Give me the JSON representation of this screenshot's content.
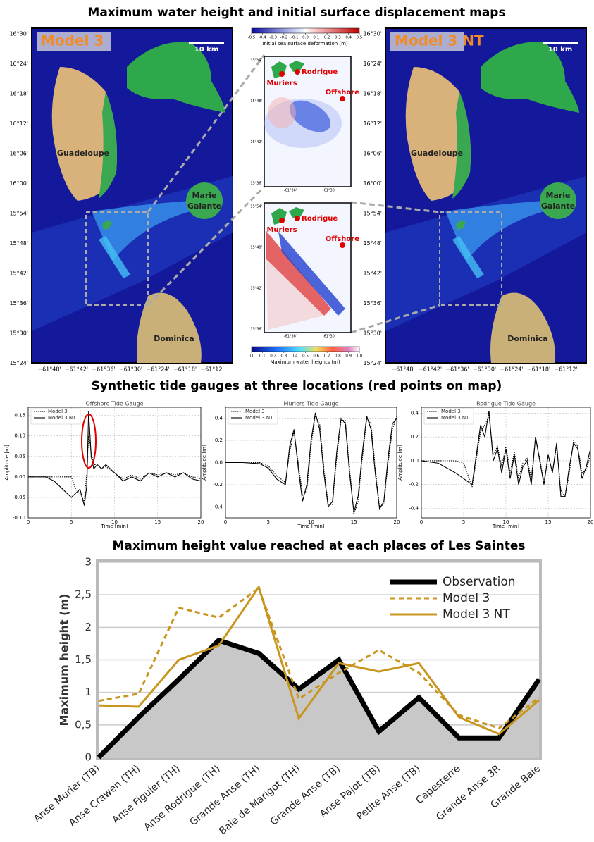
{
  "maps": {
    "title": "Maximum water height and initial surface displacement maps",
    "left_model": "Model 3",
    "right_model": "Model 3 NT",
    "scale": "10 km",
    "places": {
      "guadeloupe": "Guadeloupe",
      "marie_galante": "Marie Galante",
      "dominica": "Dominica"
    },
    "lat_ticks": [
      "16°30'",
      "16°24'",
      "16°18'",
      "16°12'",
      "16°06'",
      "16°00'",
      "15°54'",
      "15°48'",
      "15°42'",
      "15°36'",
      "15°30'",
      "15°24'"
    ],
    "lon_ticks": [
      "−61°48'",
      "−61°42'",
      "−61°36'",
      "−61°30'",
      "−61°24'",
      "−61°18'",
      "−61°12'"
    ],
    "deformation_colorbar": {
      "label": "Initial sea surface deformation (m)",
      "ticks": [
        -0.5,
        -0.4,
        -0.3,
        -0.2,
        -0.1,
        {
          "value": 0,
          "label": "0.0"
        },
        0.1,
        0.2,
        0.3,
        0.4,
        0.5
      ]
    },
    "height_colorbar": {
      "label": "Maximum water heights (m)",
      "ticks": [
        {
          "value": 0,
          "label": "0.0"
        },
        0.1,
        0.2,
        0.3,
        0.4,
        0.5,
        0.6,
        0.7,
        0.8,
        0.9,
        {
          "value": 1,
          "label": "1.0"
        }
      ]
    },
    "stations": {
      "muriers": "Muriers",
      "rodrigue": "Rodrigue",
      "offshore": "Offshore"
    },
    "inset_lat_ticks": [
      "15°54'",
      "15°48'",
      "15°42'",
      "15°36'"
    ],
    "inset_lon_ticks": [
      "-61°36'",
      "-61°30'"
    ]
  },
  "gauges_title": "Synthetic tide gauges at three locations (red points on map)",
  "chart_data": [
    {
      "type": "line",
      "title": "Offshore Tide Gauge",
      "x_label": "Time [min]",
      "y_label": "Amplitude [m]",
      "x": [
        0,
        2,
        3,
        4,
        5,
        5.5,
        6,
        6.5,
        6.8,
        7,
        7.3,
        7.6,
        8,
        8.5,
        9,
        10,
        11,
        12,
        13,
        14,
        15,
        16,
        17,
        18,
        19,
        20
      ],
      "series": [
        {
          "name": "Model 3",
          "color": "#000000",
          "line_style": "dotted",
          "values": [
            0,
            0,
            0,
            0,
            0,
            -0.03,
            -0.04,
            -0.06,
            0.01,
            0.1,
            0.06,
            0.03,
            0.03,
            0.02,
            0.025,
            0.01,
            -0.005,
            0.005,
            -0.005,
            0.01,
            0.005,
            0.01,
            0.005,
            0.01,
            0,
            -0.005
          ]
        },
        {
          "name": "Model 3 NT",
          "color": "#000000",
          "line_style": "solid",
          "values": [
            0,
            0,
            -0.01,
            -0.03,
            -0.05,
            -0.04,
            -0.03,
            -0.07,
            -0.02,
            0.16,
            0.05,
            0.02,
            0.03,
            0.02,
            0.03,
            0.01,
            -0.01,
            0,
            -0.01,
            0.01,
            0,
            0.01,
            0,
            0.01,
            -0.005,
            -0.01
          ]
        }
      ],
      "xlim": [
        0,
        20
      ],
      "xticks": [
        0,
        5,
        10,
        15,
        20
      ],
      "ylim": [
        -0.1,
        0.17
      ],
      "yticks": [
        {
          "value": -0.1,
          "label": "-0.10"
        },
        -0.05,
        {
          "value": 0,
          "label": "0.00"
        },
        0.05,
        {
          "value": 0.1,
          "label": "0.10"
        },
        0.15
      ],
      "grid": true,
      "legend": "upper left"
    },
    {
      "type": "line",
      "title": "Muriers Tide Gauge",
      "x_label": "Time [min]",
      "y_label": "Amplitude [m]",
      "x": [
        0,
        2,
        4,
        5,
        6,
        7,
        7.5,
        8,
        8.5,
        9,
        9.5,
        10,
        10.5,
        11,
        11.5,
        12,
        12.5,
        13,
        13.5,
        14,
        14.5,
        15,
        15.5,
        16,
        16.5,
        17,
        17.5,
        18,
        18.5,
        19,
        19.5,
        20
      ],
      "series": [
        {
          "name": "Model 3",
          "color": "#000000",
          "line_style": "dotted",
          "values": [
            0,
            0,
            0,
            -0.03,
            -0.12,
            -0.18,
            0.1,
            0.28,
            0,
            -0.3,
            -0.25,
            0.15,
            0.42,
            0.35,
            -0.05,
            -0.38,
            -0.38,
            0.05,
            0.38,
            0.38,
            -0.05,
            -0.47,
            -0.35,
            0.05,
            0.4,
            0.35,
            -0.05,
            -0.4,
            -0.38,
            0,
            0.3,
            0.42
          ]
        },
        {
          "name": "Model 3 NT",
          "color": "#000000",
          "line_style": "solid",
          "values": [
            0,
            0,
            -0.01,
            -0.05,
            -0.15,
            -0.2,
            0.15,
            0.3,
            -0.05,
            -0.35,
            -0.2,
            0.2,
            0.45,
            0.3,
            -0.1,
            -0.4,
            -0.35,
            0.1,
            0.4,
            0.35,
            -0.1,
            -0.45,
            -0.3,
            0.1,
            0.42,
            0.3,
            -0.1,
            -0.42,
            -0.35,
            0.05,
            0.35,
            0.4
          ]
        }
      ],
      "xlim": [
        0,
        20
      ],
      "xticks": [
        0,
        5,
        10,
        15,
        20
      ],
      "ylim": [
        -0.5,
        0.5
      ],
      "yticks": [
        -0.4,
        -0.2,
        {
          "value": 0,
          "label": "0.0"
        },
        0.2,
        0.4
      ],
      "grid": true,
      "legend": "upper left"
    },
    {
      "type": "line",
      "title": "Rodrigue Tide Gauge",
      "x_label": "Time [min]",
      "y_label": "Amplitude [m]",
      "x": [
        0,
        2,
        4,
        5,
        6,
        7,
        7.5,
        8,
        8.5,
        9,
        9.5,
        10,
        10.5,
        11,
        11.5,
        12,
        12.5,
        13,
        13.5,
        14,
        14.5,
        15,
        15.5,
        16,
        16.5,
        17,
        17.5,
        18,
        18.5,
        19,
        19.5,
        20
      ],
      "series": [
        {
          "name": "Model 3",
          "color": "#000000",
          "line_style": "dotted",
          "values": [
            0,
            0,
            0,
            -0.02,
            -0.22,
            0.25,
            0.3,
            0.38,
            0.05,
            0.12,
            -0.05,
            0.12,
            -0.1,
            0.08,
            -0.15,
            -0.02,
            0.02,
            -0.15,
            0.2,
            0.02,
            -0.18,
            0.05,
            -0.1,
            0.12,
            -0.25,
            -0.3,
            -0.1,
            0.17,
            0.12,
            -0.1,
            -0.08,
            0.05
          ]
        },
        {
          "name": "Model 3 NT",
          "color": "#000000",
          "line_style": "solid",
          "values": [
            0,
            -0.02,
            -0.1,
            -0.15,
            -0.2,
            0.3,
            0.2,
            0.42,
            0,
            0.1,
            -0.1,
            0.1,
            -0.15,
            0.05,
            -0.2,
            -0.05,
            0,
            -0.2,
            0.2,
            0,
            -0.2,
            0.05,
            -0.1,
            0.15,
            -0.3,
            -0.3,
            -0.05,
            0.15,
            0.1,
            -0.15,
            -0.05,
            0.1
          ]
        }
      ],
      "xlim": [
        0,
        20
      ],
      "xticks": [
        0,
        5,
        10,
        15,
        20
      ],
      "ylim": [
        -0.48,
        0.45
      ],
      "yticks": [
        -0.4,
        -0.2,
        {
          "value": 0,
          "label": "0.0"
        },
        0.2,
        0.4
      ],
      "grid": true,
      "legend": "upper left"
    },
    {
      "type": "line",
      "title": "Maximum height value reached at each places of Les Saintes",
      "y_label": "Maximum height (m)",
      "categories": [
        "Anse Murier (TB)",
        "Anse Crawen (TH)",
        "Anse Figuier (TH)",
        "Anse Rodrigue (TH)",
        "Grande Anse (TH)",
        "Baie de Marigot (TH)",
        "Grande Anse (TB)",
        "Anse Pajot (TB)",
        "Petite Anse (TB)",
        "Capesterre",
        "Grande Anse 3R",
        "Grande Baie"
      ],
      "series": [
        {
          "name": "Observation",
          "color": "#000000",
          "line_style": "thick",
          "area_fill": "#c8c8c8",
          "values": [
            0,
            0.62,
            1.2,
            1.8,
            1.6,
            1.05,
            1.5,
            0.4,
            0.92,
            0.3,
            0.3,
            1.2
          ]
        },
        {
          "name": "Model 3",
          "color": "#c8961e",
          "line_style": "dashed",
          "values": [
            0.87,
            0.98,
            2.3,
            2.15,
            2.6,
            0.9,
            1.3,
            1.65,
            1.3,
            0.65,
            0.45,
            0.92
          ]
        },
        {
          "name": "Model 3 NT",
          "color": "#c8961e",
          "line_style": "solid",
          "values": [
            0.8,
            0.78,
            1.5,
            1.72,
            2.62,
            0.6,
            1.45,
            1.32,
            1.45,
            0.62,
            0.36,
            0.88
          ]
        }
      ],
      "ylim": [
        0,
        3
      ],
      "yticks": [
        0,
        {
          "value": 0.5,
          "label": "0,5"
        },
        1,
        {
          "value": 1.5,
          "label": "1,5"
        },
        2,
        {
          "value": 2.5,
          "label": "2,5"
        },
        3
      ],
      "grid": true,
      "legend": "upper right"
    }
  ]
}
